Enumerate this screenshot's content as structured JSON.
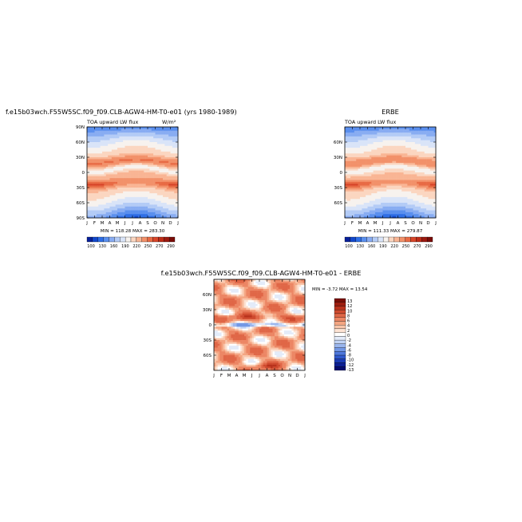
{
  "figure": {
    "top_left_title": "f.e15b03wch.F55W5SC.f09_f09.CLB-AGW4-HM-T0-e01 (yrs 1980-1989)",
    "top_right_title": "ERBE",
    "bottom_title": "f.e15b03wch.F55W5SC.f09_f09.CLB-AGW4-HM-T0-e01 - ERBE"
  },
  "colors": {
    "flux_scale": [
      "#08209a",
      "#1248cc",
      "#2e6ee6",
      "#5a8fee",
      "#88acf2",
      "#b3cbf6",
      "#d9e4f8",
      "#f7f2ee",
      "#fbd6c0",
      "#f9b594",
      "#f2916a",
      "#e86b45",
      "#d8462a",
      "#bf2d18",
      "#9c1a10",
      "#7a0c08"
    ],
    "diff_scale": [
      "#040b6e",
      "#0c1e92",
      "#1a3ab4",
      "#2f58cc",
      "#4f78dc",
      "#7398e6",
      "#9ab6ee",
      "#c1d3f5",
      "#e3ebf9",
      "#ffffff",
      "#fde3d3",
      "#f9c6ab",
      "#f4a582",
      "#ec8664",
      "#e06747",
      "#cf4a2e",
      "#b8321c",
      "#9c1e10",
      "#7a0e06"
    ]
  },
  "chart_data": [
    {
      "type": "heatmap",
      "title": "TOA upward LW flux",
      "units": "W/m²",
      "x": [
        "J",
        "F",
        "M",
        "A",
        "M",
        "J",
        "J",
        "A",
        "S",
        "O",
        "N",
        "D",
        "J"
      ],
      "y_ticks": [
        "90N",
        "60N",
        "30N",
        "0",
        "30S",
        "60S",
        "90S"
      ],
      "y_tick_lat": [
        90,
        60,
        30,
        0,
        -30,
        -60,
        -90
      ],
      "lat_range": [
        -90,
        90
      ],
      "stats": "MIN = 118.28  MAX = 283.30",
      "colorbar_labels": [
        "100",
        "130",
        "160",
        "190",
        "220",
        "250",
        "270",
        "290"
      ],
      "levels": [
        100,
        115,
        130,
        145,
        160,
        175,
        190,
        205,
        220,
        235,
        250,
        260,
        270,
        280,
        290
      ],
      "model": "model"
    },
    {
      "type": "heatmap",
      "title": "TOA upward LW flux",
      "units": "",
      "x": [
        "J",
        "F",
        "M",
        "A",
        "M",
        "J",
        "J",
        "A",
        "S",
        "O",
        "N",
        "D",
        "J"
      ],
      "y_ticks": [
        "60N",
        "30N",
        "0",
        "30S",
        "60S"
      ],
      "y_tick_lat": [
        60,
        30,
        0,
        -30,
        -60
      ],
      "lat_range": [
        -90,
        90
      ],
      "stats": "MIN = 111.33  MAX = 279.87",
      "colorbar_labels": [
        "100",
        "130",
        "160",
        "190",
        "220",
        "250",
        "270",
        "290"
      ],
      "levels": [
        100,
        115,
        130,
        145,
        160,
        175,
        190,
        205,
        220,
        235,
        250,
        260,
        270,
        280,
        290
      ],
      "model": "obs"
    },
    {
      "type": "heatmap",
      "title": "",
      "x": [
        "J",
        "F",
        "M",
        "A",
        "M",
        "J",
        "J",
        "A",
        "S",
        "O",
        "N",
        "D",
        "J"
      ],
      "y_ticks": [
        "60N",
        "30N",
        "0",
        "30S",
        "60S"
      ],
      "y_tick_lat": [
        60,
        30,
        0,
        -30,
        -60
      ],
      "lat_range": [
        -90,
        90
      ],
      "stats": "MIN =  -3.72  MAX =  13.54",
      "colorbar_labels": [
        "13",
        "12",
        "10",
        "8",
        "6",
        "4",
        "2",
        "0",
        "-2",
        "-4",
        "-6",
        "-8",
        "-10",
        "-12",
        "-13"
      ],
      "model": "diff"
    }
  ]
}
